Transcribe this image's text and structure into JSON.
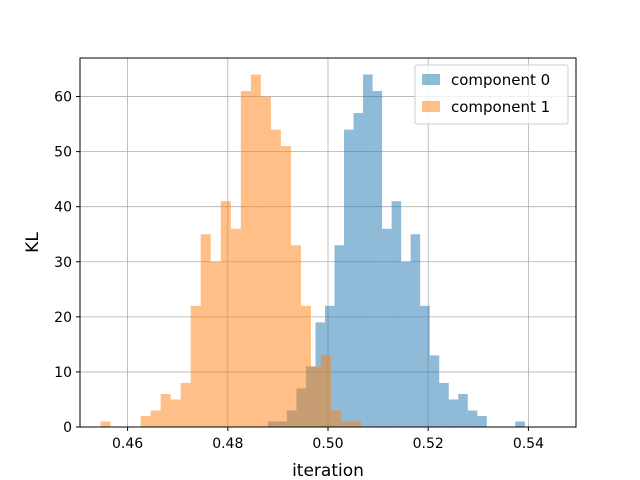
{
  "chart_data": {
    "type": "histogram",
    "xlabel": "iteration",
    "ylabel": "KL",
    "xlim": [
      0.4505,
      0.5495
    ],
    "ylim": [
      0,
      67
    ],
    "xticks": [
      0.46,
      0.48,
      0.5,
      0.52,
      0.54
    ],
    "xtick_labels": [
      "0.46",
      "0.48",
      "0.50",
      "0.52",
      "0.54"
    ],
    "yticks": [
      0,
      10,
      20,
      30,
      40,
      50,
      60
    ],
    "ytick_labels": [
      "0",
      "10",
      "20",
      "30",
      "40",
      "50",
      "60"
    ],
    "grid": true,
    "legend_position": "upper right",
    "series": [
      {
        "name": "component 0",
        "color": "#1f77b4",
        "alpha": 0.5,
        "bins": [
          [
            0.488,
            0.4899,
            1
          ],
          [
            0.4899,
            0.4918,
            1
          ],
          [
            0.4918,
            0.4937,
            3
          ],
          [
            0.4937,
            0.4956,
            7
          ],
          [
            0.4956,
            0.4975,
            11
          ],
          [
            0.4975,
            0.4994,
            19
          ],
          [
            0.4994,
            0.5013,
            22
          ],
          [
            0.5013,
            0.5032,
            33
          ],
          [
            0.5032,
            0.5051,
            54
          ],
          [
            0.5051,
            0.507,
            57
          ],
          [
            0.507,
            0.5089,
            64
          ],
          [
            0.5089,
            0.5108,
            61
          ],
          [
            0.5108,
            0.5127,
            36
          ],
          [
            0.5127,
            0.5146,
            41
          ],
          [
            0.5146,
            0.5165,
            30
          ],
          [
            0.5165,
            0.5184,
            35
          ],
          [
            0.5184,
            0.5203,
            22
          ],
          [
            0.5203,
            0.5222,
            13
          ],
          [
            0.5222,
            0.5241,
            8
          ],
          [
            0.5241,
            0.526,
            5
          ],
          [
            0.526,
            0.5279,
            6
          ],
          [
            0.5279,
            0.5298,
            3
          ],
          [
            0.5298,
            0.5317,
            2
          ],
          [
            0.5317,
            0.5336,
            0
          ],
          [
            0.5336,
            0.5355,
            0
          ],
          [
            0.5355,
            0.5374,
            0
          ],
          [
            0.5374,
            0.5393,
            1
          ]
        ]
      },
      {
        "name": "component 1",
        "color": "#ff7f0e",
        "alpha": 0.5,
        "bins": [
          [
            0.4546,
            0.4566,
            1
          ],
          [
            0.4566,
            0.4586,
            0
          ],
          [
            0.4586,
            0.4606,
            0
          ],
          [
            0.4606,
            0.4626,
            0
          ],
          [
            0.4626,
            0.4646,
            2
          ],
          [
            0.4646,
            0.4666,
            3
          ],
          [
            0.4666,
            0.4686,
            6
          ],
          [
            0.4686,
            0.4706,
            5
          ],
          [
            0.4706,
            0.4726,
            8
          ],
          [
            0.4726,
            0.4746,
            22
          ],
          [
            0.4746,
            0.4766,
            35
          ],
          [
            0.4766,
            0.4786,
            30
          ],
          [
            0.4786,
            0.4806,
            41
          ],
          [
            0.4806,
            0.4826,
            36
          ],
          [
            0.4826,
            0.4846,
            61
          ],
          [
            0.4846,
            0.4866,
            64
          ],
          [
            0.4866,
            0.4886,
            60
          ],
          [
            0.4886,
            0.4906,
            54
          ],
          [
            0.4906,
            0.4926,
            51
          ],
          [
            0.4926,
            0.4946,
            33
          ],
          [
            0.4946,
            0.4966,
            22
          ],
          [
            0.4966,
            0.4986,
            11
          ],
          [
            0.4986,
            0.5006,
            13
          ],
          [
            0.5006,
            0.5026,
            3
          ],
          [
            0.5026,
            0.5046,
            1
          ],
          [
            0.5046,
            0.5066,
            1
          ]
        ]
      }
    ]
  }
}
